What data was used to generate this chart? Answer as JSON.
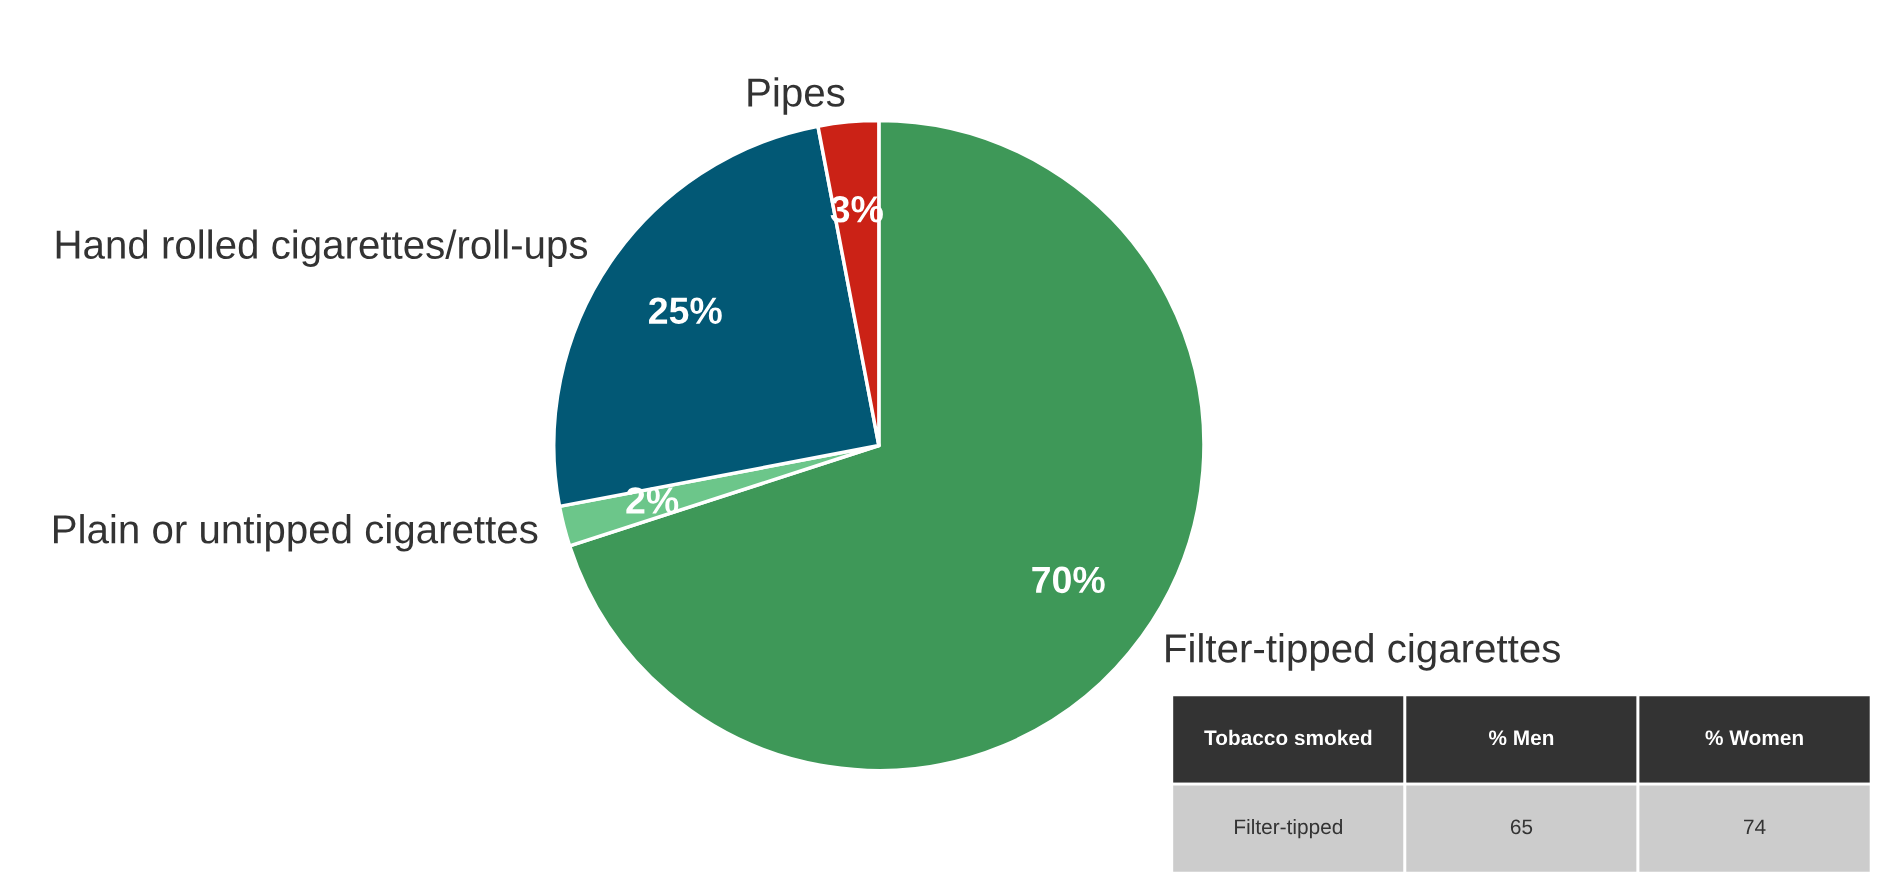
{
  "chart_data": {
    "type": "pie",
    "categories": [
      "Filter-tipped cigarettes",
      "Plain or untipped cigarettes",
      "Hand rolled cigarettes/roll-ups",
      "Pipes"
    ],
    "values": [
      70,
      2,
      25,
      3
    ],
    "colors": [
      "#3e9858",
      "#6cc68a",
      "#025875",
      "#cb2216"
    ],
    "value_labels": [
      "70%",
      "2%",
      "25%",
      "3%"
    ],
    "annotations": [
      "Tobacco smoked",
      "% Men",
      "% Women",
      "Filter-tipped",
      "65",
      "74"
    ]
  }
}
